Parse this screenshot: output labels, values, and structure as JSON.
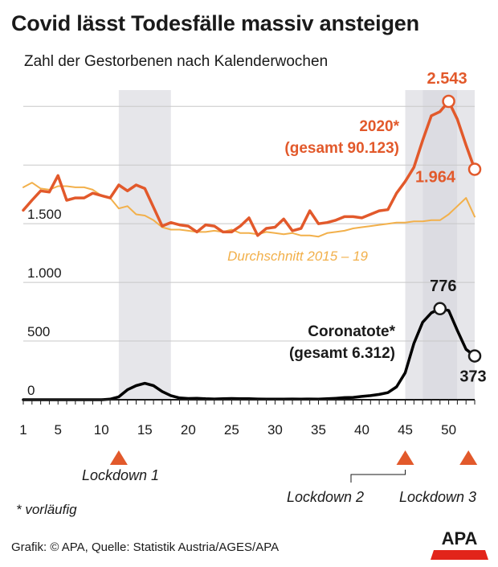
{
  "title": "Covid lässt Todesfälle massiv ansteigen",
  "subtitle": "Zahl der Gestorbenen nach Kalenderwochen",
  "footnote": "* vorläufig",
  "source": "Grafik: © APA, Quelle: Statistik Austria/AGES/APA",
  "logo_text": "APA",
  "colors": {
    "series_2020": "#e2592b",
    "series_avg": "#f2b04b",
    "series_covid": "#000000",
    "shade": "#e6e6ea",
    "grid": "#c8c8c8",
    "marker": "#e2592b",
    "logo_red": "#e2241a"
  },
  "chart_data": {
    "type": "line",
    "xlim": [
      1,
      53
    ],
    "ylim": [
      0,
      2543
    ],
    "x_ticks": [
      1,
      5,
      10,
      15,
      20,
      25,
      30,
      35,
      40,
      45,
      50
    ],
    "y_ticks": [
      {
        "value": 0,
        "label": "0"
      },
      {
        "value": 500,
        "label": "500"
      },
      {
        "value": 1000,
        "label": "1.000"
      },
      {
        "value": 1500,
        "label": "1.500"
      },
      {
        "value": 2000,
        "label": ""
      },
      {
        "value": 2500,
        "label": ""
      }
    ],
    "shaded_weeks": [
      [
        12,
        18
      ],
      [
        45,
        47
      ],
      [
        47,
        51
      ],
      [
        51,
        53
      ]
    ],
    "series": [
      {
        "key": "2020",
        "name": "2020*",
        "label_line2": "(gesamt 90.123)",
        "x": [
          1,
          2,
          3,
          4,
          5,
          6,
          7,
          8,
          9,
          10,
          11,
          12,
          13,
          14,
          15,
          16,
          17,
          18,
          19,
          20,
          21,
          22,
          23,
          24,
          25,
          26,
          27,
          28,
          29,
          30,
          31,
          32,
          33,
          34,
          35,
          36,
          37,
          38,
          39,
          40,
          41,
          42,
          43,
          44,
          45,
          46,
          47,
          48,
          49,
          50,
          51,
          52,
          53
        ],
        "values": [
          1615,
          1700,
          1780,
          1770,
          1910,
          1700,
          1720,
          1720,
          1760,
          1740,
          1720,
          1830,
          1780,
          1830,
          1800,
          1640,
          1480,
          1510,
          1490,
          1480,
          1430,
          1490,
          1480,
          1430,
          1430,
          1480,
          1550,
          1400,
          1460,
          1470,
          1540,
          1440,
          1460,
          1610,
          1500,
          1510,
          1530,
          1560,
          1560,
          1550,
          1580,
          1610,
          1620,
          1760,
          1860,
          1980,
          2210,
          2420,
          2455,
          2543,
          2390,
          2170,
          1964
        ]
      },
      {
        "key": "avg",
        "name": "Durchschnitt 2015 – 19",
        "x": [
          1,
          2,
          3,
          4,
          5,
          6,
          7,
          8,
          9,
          10,
          11,
          12,
          13,
          14,
          15,
          16,
          17,
          18,
          19,
          20,
          21,
          22,
          23,
          24,
          25,
          26,
          27,
          28,
          29,
          30,
          31,
          32,
          33,
          34,
          35,
          36,
          37,
          38,
          39,
          40,
          41,
          42,
          43,
          44,
          45,
          46,
          47,
          48,
          49,
          50,
          51,
          52,
          53
        ],
        "values": [
          1810,
          1850,
          1800,
          1790,
          1820,
          1820,
          1810,
          1810,
          1790,
          1740,
          1720,
          1630,
          1650,
          1580,
          1570,
          1530,
          1470,
          1450,
          1450,
          1440,
          1430,
          1430,
          1440,
          1430,
          1450,
          1420,
          1420,
          1410,
          1430,
          1420,
          1410,
          1420,
          1400,
          1400,
          1390,
          1420,
          1430,
          1440,
          1460,
          1470,
          1480,
          1490,
          1500,
          1510,
          1510,
          1520,
          1520,
          1530,
          1530,
          1580,
          1650,
          1720,
          1560
        ]
      },
      {
        "key": "covid",
        "name": "Coronatote*",
        "label_line2": "(gesamt 6.312)",
        "x": [
          1,
          2,
          3,
          4,
          5,
          6,
          7,
          8,
          9,
          10,
          11,
          12,
          13,
          14,
          15,
          16,
          17,
          18,
          19,
          20,
          21,
          22,
          23,
          24,
          25,
          26,
          27,
          28,
          29,
          30,
          31,
          32,
          33,
          34,
          35,
          36,
          37,
          38,
          39,
          40,
          41,
          42,
          43,
          44,
          45,
          46,
          47,
          48,
          49,
          50,
          51,
          52,
          53
        ],
        "values": [
          0,
          0,
          0,
          0,
          0,
          0,
          0,
          0,
          0,
          0,
          5,
          25,
          85,
          120,
          140,
          120,
          70,
          35,
          15,
          10,
          12,
          8,
          6,
          8,
          10,
          8,
          8,
          6,
          5,
          5,
          5,
          6,
          5,
          6,
          5,
          8,
          12,
          18,
          20,
          28,
          35,
          45,
          60,
          110,
          230,
          480,
          660,
          740,
          776,
          760,
          590,
          430,
          373
        ]
      }
    ],
    "annotations": [
      {
        "series": "2020",
        "week": 50,
        "label": "2.543"
      },
      {
        "series": "2020",
        "week": 53,
        "label": "1.964"
      },
      {
        "series": "covid",
        "week": 49,
        "label": "776"
      },
      {
        "series": "covid",
        "week": 53,
        "label": "373"
      }
    ],
    "lockdowns": [
      {
        "week": 12,
        "label": "Lockdown 1"
      },
      {
        "week": 45,
        "label": "Lockdown 2"
      },
      {
        "week": 52,
        "label": "Lockdown 3"
      }
    ]
  }
}
